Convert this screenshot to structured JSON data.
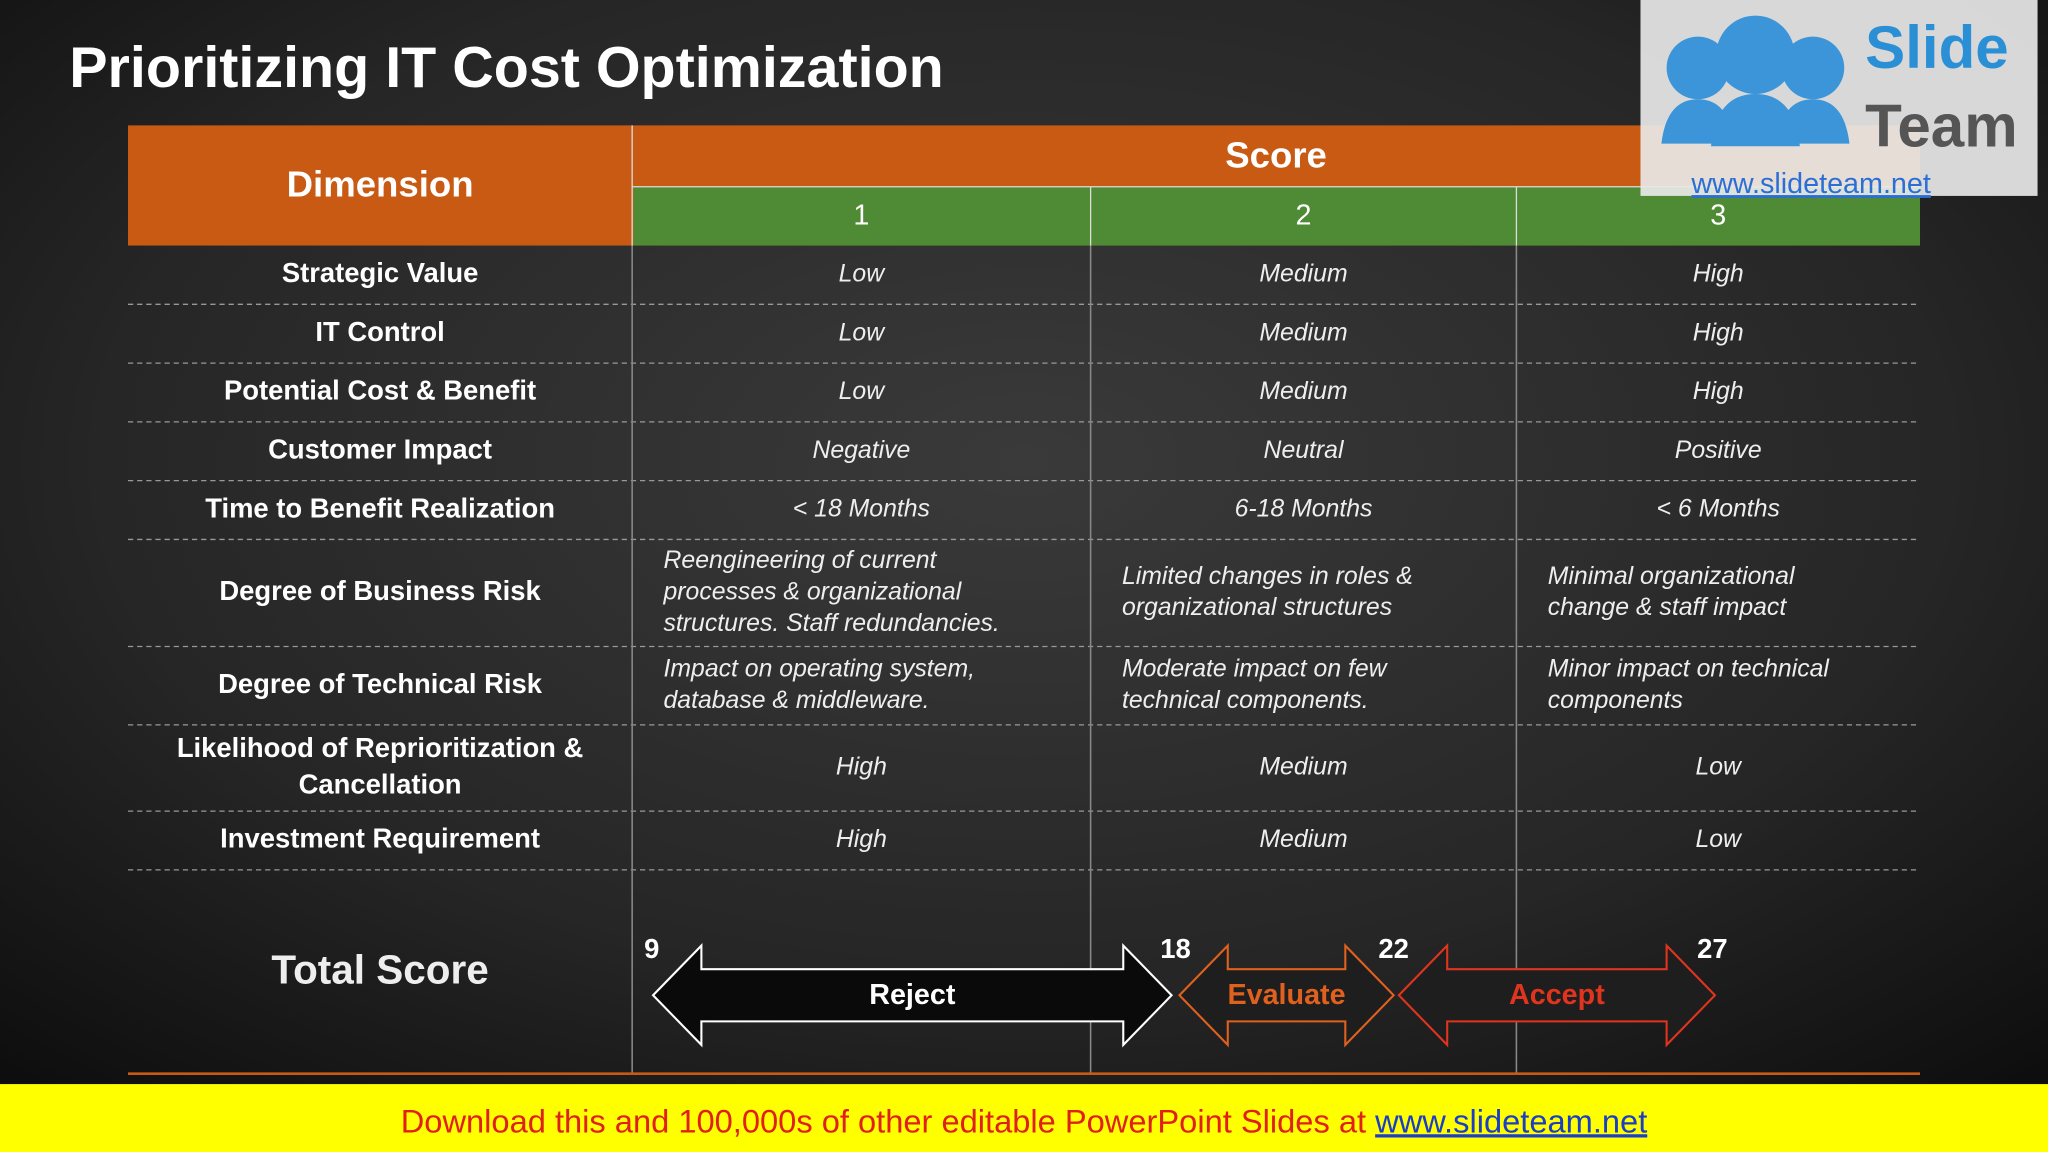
{
  "title": "Prioritizing IT Cost Optimization",
  "logo": {
    "word1": "Slide",
    "word2": "Team",
    "url": "www.slideteam.net"
  },
  "table": {
    "header": {
      "dimension": "Dimension",
      "score": "Score",
      "columns": [
        "1",
        "2",
        "3"
      ]
    },
    "rows": [
      {
        "dimension": [
          "Strategic Value"
        ],
        "cells": [
          [
            "Low"
          ],
          [
            "Medium"
          ],
          [
            "High"
          ]
        ]
      },
      {
        "dimension": [
          "IT Control"
        ],
        "cells": [
          [
            "Low"
          ],
          [
            "Medium"
          ],
          [
            "High"
          ]
        ]
      },
      {
        "dimension": [
          "Potential Cost & Benefit"
        ],
        "cells": [
          [
            "Low"
          ],
          [
            "Medium"
          ],
          [
            "High"
          ]
        ]
      },
      {
        "dimension": [
          "Customer Impact"
        ],
        "cells": [
          [
            "Negative"
          ],
          [
            "Neutral"
          ],
          [
            "Positive"
          ]
        ]
      },
      {
        "dimension": [
          "Time to Benefit Realization"
        ],
        "cells": [
          [
            "< 18 Months"
          ],
          [
            "6-18 Months"
          ],
          [
            "< 6 Months"
          ]
        ]
      },
      {
        "dimension": [
          "Degree of Business Risk"
        ],
        "cells": [
          [
            "Reengineering of current",
            "processes & organizational",
            "structures. Staff redundancies."
          ],
          [
            "Limited changes in roles &",
            "organizational structures"
          ],
          [
            "Minimal organizational",
            "change & staff impact"
          ]
        ]
      },
      {
        "dimension": [
          "Degree of Technical Risk"
        ],
        "cells": [
          [
            "Impact on operating system,",
            "database & middleware."
          ],
          [
            "Moderate impact on few",
            "technical components."
          ],
          [
            "Minor impact on technical",
            "components"
          ]
        ]
      },
      {
        "dimension": [
          "Likelihood of Reprioritization &",
          "Cancellation"
        ],
        "cells": [
          [
            "High"
          ],
          [
            "Medium"
          ],
          [
            "Low"
          ]
        ]
      },
      {
        "dimension": [
          "Investment Requirement"
        ],
        "cells": [
          [
            "High"
          ],
          [
            "Medium"
          ],
          [
            "Low"
          ]
        ]
      }
    ],
    "total": {
      "label": "Total Score",
      "thresholds": [
        "9",
        "18",
        "22",
        "27"
      ],
      "ranges": [
        {
          "label": "Reject",
          "color": "#ffffff"
        },
        {
          "label": "Evaluate",
          "color": "#e0601e"
        },
        {
          "label": "Accept",
          "color": "#e0341e"
        }
      ]
    }
  },
  "footer": {
    "text": "Download this and 100,000s of other editable PowerPoint Slides at",
    "link": "www.slideteam.net"
  }
}
